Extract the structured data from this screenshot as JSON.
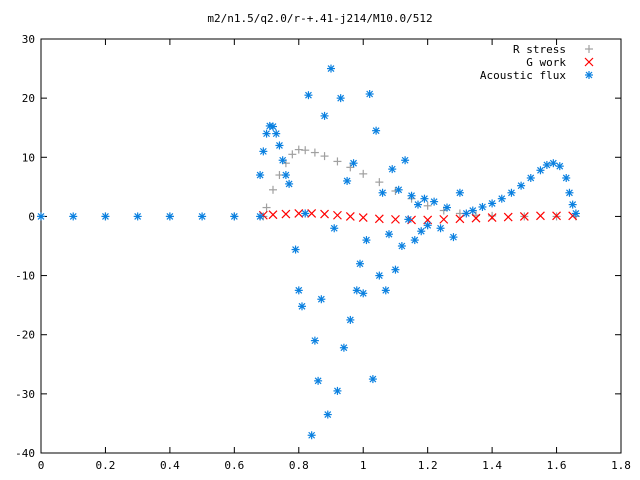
{
  "chart_data": {
    "type": "scatter",
    "title": "m2/n1.5/q2.0/r-+.41-j214/M10.0/512",
    "xlabel": "",
    "ylabel": "",
    "xlim": [
      0,
      1.8
    ],
    "ylim": [
      -40,
      30
    ],
    "x_ticks": [
      0,
      0.2,
      0.4,
      0.6,
      0.8,
      1,
      1.2,
      1.4,
      1.6,
      1.8
    ],
    "x_tick_labels": [
      "0",
      "0.2",
      "0.4",
      "0.6",
      "0.8",
      "1",
      "1.2",
      "1.4",
      "1.6",
      "1.8"
    ],
    "y_ticks": [
      -40,
      -30,
      -20,
      -10,
      0,
      10,
      20,
      30
    ],
    "y_tick_labels": [
      "-40",
      "-30",
      "-20",
      "-10",
      "0",
      "10",
      "20",
      "30"
    ],
    "grid": false,
    "legend_position": "top-right",
    "series": [
      {
        "name": "R stress",
        "marker": "plus",
        "color": "#a0a0a0",
        "points": [
          [
            0.0,
            0.0
          ],
          [
            0.2,
            0.0
          ],
          [
            0.4,
            0.0
          ],
          [
            0.6,
            0.0
          ],
          [
            0.69,
            0.0
          ],
          [
            0.7,
            1.5
          ],
          [
            0.72,
            4.5
          ],
          [
            0.74,
            7.0
          ],
          [
            0.76,
            9.0
          ],
          [
            0.78,
            10.5
          ],
          [
            0.8,
            11.3
          ],
          [
            0.82,
            11.2
          ],
          [
            0.85,
            10.8
          ],
          [
            0.88,
            10.2
          ],
          [
            0.92,
            9.3
          ],
          [
            0.96,
            8.3
          ],
          [
            1.0,
            7.2
          ],
          [
            1.05,
            5.8
          ],
          [
            1.1,
            4.3
          ],
          [
            1.15,
            3.0
          ],
          [
            1.2,
            1.8
          ],
          [
            1.25,
            1.0
          ],
          [
            1.3,
            0.5
          ],
          [
            1.35,
            0.2
          ],
          [
            1.4,
            0.1
          ],
          [
            1.5,
            0.0
          ],
          [
            1.6,
            0.0
          ],
          [
            1.66,
            0.0
          ]
        ]
      },
      {
        "name": "G work",
        "marker": "cross",
        "color": "#ff0000",
        "points": [
          [
            0.69,
            0.2
          ],
          [
            0.72,
            0.3
          ],
          [
            0.76,
            0.4
          ],
          [
            0.8,
            0.5
          ],
          [
            0.84,
            0.5
          ],
          [
            0.88,
            0.4
          ],
          [
            0.92,
            0.2
          ],
          [
            0.96,
            0.0
          ],
          [
            1.0,
            -0.2
          ],
          [
            1.05,
            -0.4
          ],
          [
            1.1,
            -0.5
          ],
          [
            1.15,
            -0.6
          ],
          [
            1.2,
            -0.6
          ],
          [
            1.25,
            -0.5
          ],
          [
            1.3,
            -0.4
          ],
          [
            1.35,
            -0.3
          ],
          [
            1.4,
            -0.2
          ],
          [
            1.45,
            -0.1
          ],
          [
            1.5,
            0.0
          ],
          [
            1.55,
            0.1
          ],
          [
            1.6,
            0.1
          ],
          [
            1.65,
            0.1
          ]
        ]
      },
      {
        "name": "Acoustic flux",
        "marker": "star",
        "color": "#0a80e0",
        "points": [
          [
            0.0,
            0.0
          ],
          [
            0.1,
            0.0
          ],
          [
            0.2,
            0.0
          ],
          [
            0.3,
            0.0
          ],
          [
            0.4,
            0.0
          ],
          [
            0.5,
            0.0
          ],
          [
            0.6,
            0.0
          ],
          [
            0.68,
            0.0
          ],
          [
            0.68,
            7.0
          ],
          [
            0.69,
            11.0
          ],
          [
            0.7,
            14.0
          ],
          [
            0.71,
            15.3
          ],
          [
            0.72,
            15.2
          ],
          [
            0.73,
            14.0
          ],
          [
            0.74,
            12.0
          ],
          [
            0.75,
            9.5
          ],
          [
            0.76,
            7.0
          ],
          [
            0.77,
            5.5
          ],
          [
            0.79,
            -5.6
          ],
          [
            0.8,
            -12.5
          ],
          [
            0.81,
            -15.2
          ],
          [
            0.82,
            0.5
          ],
          [
            0.83,
            20.5
          ],
          [
            0.84,
            -37.0
          ],
          [
            0.85,
            -21.0
          ],
          [
            0.86,
            -27.8
          ],
          [
            0.87,
            -14.0
          ],
          [
            0.88,
            17.0
          ],
          [
            0.89,
            -33.5
          ],
          [
            0.9,
            25.0
          ],
          [
            0.91,
            -2.0
          ],
          [
            0.92,
            -29.5
          ],
          [
            0.93,
            20.0
          ],
          [
            0.94,
            -22.2
          ],
          [
            0.95,
            6.0
          ],
          [
            0.96,
            -17.5
          ],
          [
            0.97,
            9.0
          ],
          [
            0.98,
            -12.5
          ],
          [
            0.99,
            -8.0
          ],
          [
            1.0,
            -13.0
          ],
          [
            1.01,
            -4.0
          ],
          [
            1.02,
            20.7
          ],
          [
            1.03,
            -27.5
          ],
          [
            1.04,
            14.5
          ],
          [
            1.05,
            -10.0
          ],
          [
            1.06,
            4.0
          ],
          [
            1.07,
            -12.5
          ],
          [
            1.08,
            -3.0
          ],
          [
            1.09,
            8.0
          ],
          [
            1.1,
            -9.0
          ],
          [
            1.11,
            4.5
          ],
          [
            1.12,
            -5.0
          ],
          [
            1.13,
            9.5
          ],
          [
            1.14,
            -0.5
          ],
          [
            1.15,
            3.5
          ],
          [
            1.16,
            -4.0
          ],
          [
            1.17,
            2.0
          ],
          [
            1.18,
            -2.5
          ],
          [
            1.19,
            3.0
          ],
          [
            1.2,
            -1.5
          ],
          [
            1.22,
            2.5
          ],
          [
            1.24,
            -2.0
          ],
          [
            1.26,
            1.5
          ],
          [
            1.28,
            -3.5
          ],
          [
            1.3,
            4.0
          ],
          [
            1.32,
            0.5
          ],
          [
            1.34,
            1.0
          ],
          [
            1.37,
            1.6
          ],
          [
            1.4,
            2.2
          ],
          [
            1.43,
            3.0
          ],
          [
            1.46,
            4.0
          ],
          [
            1.49,
            5.2
          ],
          [
            1.52,
            6.5
          ],
          [
            1.55,
            7.8
          ],
          [
            1.57,
            8.7
          ],
          [
            1.59,
            9.0
          ],
          [
            1.61,
            8.5
          ],
          [
            1.63,
            6.5
          ],
          [
            1.64,
            4.0
          ],
          [
            1.65,
            2.0
          ],
          [
            1.66,
            0.5
          ]
        ]
      }
    ]
  }
}
